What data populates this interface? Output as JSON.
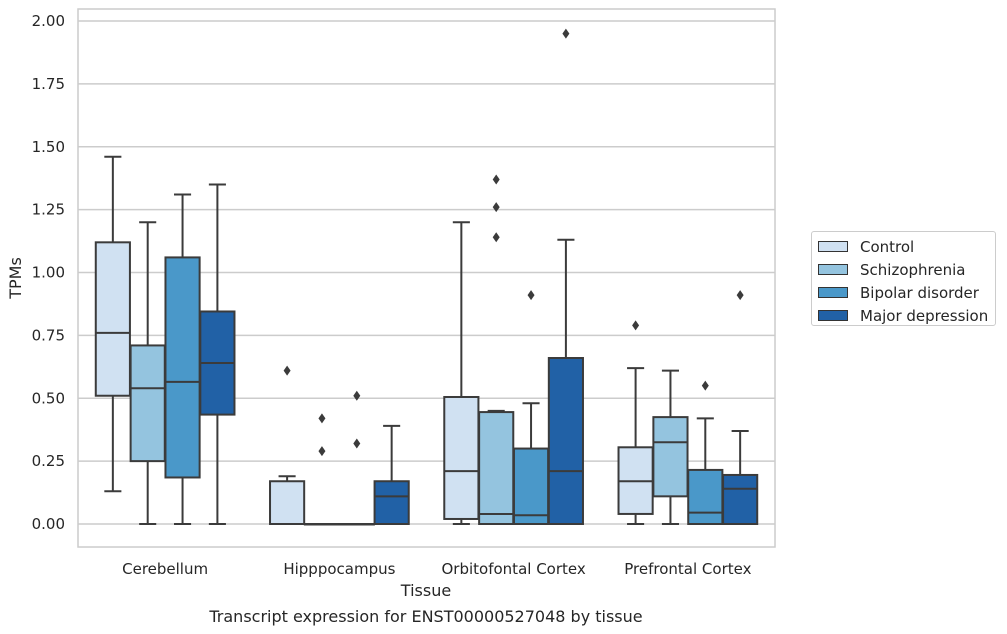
{
  "chart_data": {
    "type": "box",
    "title": "",
    "xlabel": "Tissue",
    "ylabel": "TPMs",
    "caption": "Transcript expression for ENST00000527048 by tissue",
    "categories": [
      "Cerebellum",
      "Hipppocampus",
      "Orbitofontal Cortex",
      "Prefrontal Cortex"
    ],
    "ylim": [
      -0.1,
      2.05
    ],
    "yticks": [
      "0.00",
      "0.25",
      "0.50",
      "0.75",
      "1.00",
      "1.25",
      "1.50",
      "1.75",
      "2.00"
    ],
    "grid": "horizontal",
    "legend_position": "right",
    "series": [
      {
        "name": "Control",
        "color": "#d0e1f2",
        "boxes": [
          {
            "whislo": 0.13,
            "q1": 0.51,
            "med": 0.76,
            "q3": 1.12,
            "whishi": 1.46,
            "fliers": []
          },
          {
            "whislo": 0.0,
            "q1": 0.0,
            "med": 0.0,
            "q3": 0.17,
            "whishi": 0.19,
            "fliers": [
              0.61
            ]
          },
          {
            "whislo": 0.0,
            "q1": 0.02,
            "med": 0.21,
            "q3": 0.505,
            "whishi": 1.2,
            "fliers": []
          },
          {
            "whislo": 0.0,
            "q1": 0.04,
            "med": 0.17,
            "q3": 0.305,
            "whishi": 0.62,
            "fliers": [
              0.79
            ]
          }
        ]
      },
      {
        "name": "Schizophrenia",
        "color": "#94c4df",
        "boxes": [
          {
            "whislo": 0.0,
            "q1": 0.25,
            "med": 0.54,
            "q3": 0.71,
            "whishi": 1.2,
            "fliers": []
          },
          {
            "whislo": 0.0,
            "q1": 0.0,
            "med": 0.0,
            "q3": 0.0,
            "whishi": 0.0,
            "fliers": [
              0.29,
              0.42
            ]
          },
          {
            "whislo": 0.0,
            "q1": 0.0,
            "med": 0.04,
            "q3": 0.445,
            "whishi": 0.45,
            "fliers": [
              1.14,
              1.26,
              1.37
            ]
          },
          {
            "whislo": 0.0,
            "q1": 0.11,
            "med": 0.325,
            "q3": 0.425,
            "whishi": 0.61,
            "fliers": []
          }
        ]
      },
      {
        "name": "Bipolar disorder",
        "color": "#4a98c9",
        "boxes": [
          {
            "whislo": 0.0,
            "q1": 0.185,
            "med": 0.565,
            "q3": 1.06,
            "whishi": 1.31,
            "fliers": []
          },
          {
            "whislo": 0.0,
            "q1": 0.0,
            "med": 0.0,
            "q3": 0.0,
            "whishi": 0.0,
            "fliers": [
              0.32,
              0.51
            ]
          },
          {
            "whislo": 0.0,
            "q1": 0.0,
            "med": 0.035,
            "q3": 0.3,
            "whishi": 0.48,
            "fliers": [
              0.91
            ]
          },
          {
            "whislo": 0.0,
            "q1": 0.0,
            "med": 0.045,
            "q3": 0.215,
            "whishi": 0.42,
            "fliers": [
              0.55
            ]
          }
        ]
      },
      {
        "name": "Major depression",
        "color": "#2161a6",
        "boxes": [
          {
            "whislo": 0.0,
            "q1": 0.435,
            "med": 0.64,
            "q3": 0.845,
            "whishi": 1.35,
            "fliers": []
          },
          {
            "whislo": 0.0,
            "q1": 0.0,
            "med": 0.11,
            "q3": 0.17,
            "whishi": 0.39,
            "fliers": []
          },
          {
            "whislo": 0.0,
            "q1": 0.0,
            "med": 0.21,
            "q3": 0.66,
            "whishi": 1.13,
            "fliers": [
              1.95
            ]
          },
          {
            "whislo": 0.0,
            "q1": 0.0,
            "med": 0.14,
            "q3": 0.195,
            "whishi": 0.37,
            "fliers": [
              0.91
            ]
          }
        ]
      }
    ]
  }
}
